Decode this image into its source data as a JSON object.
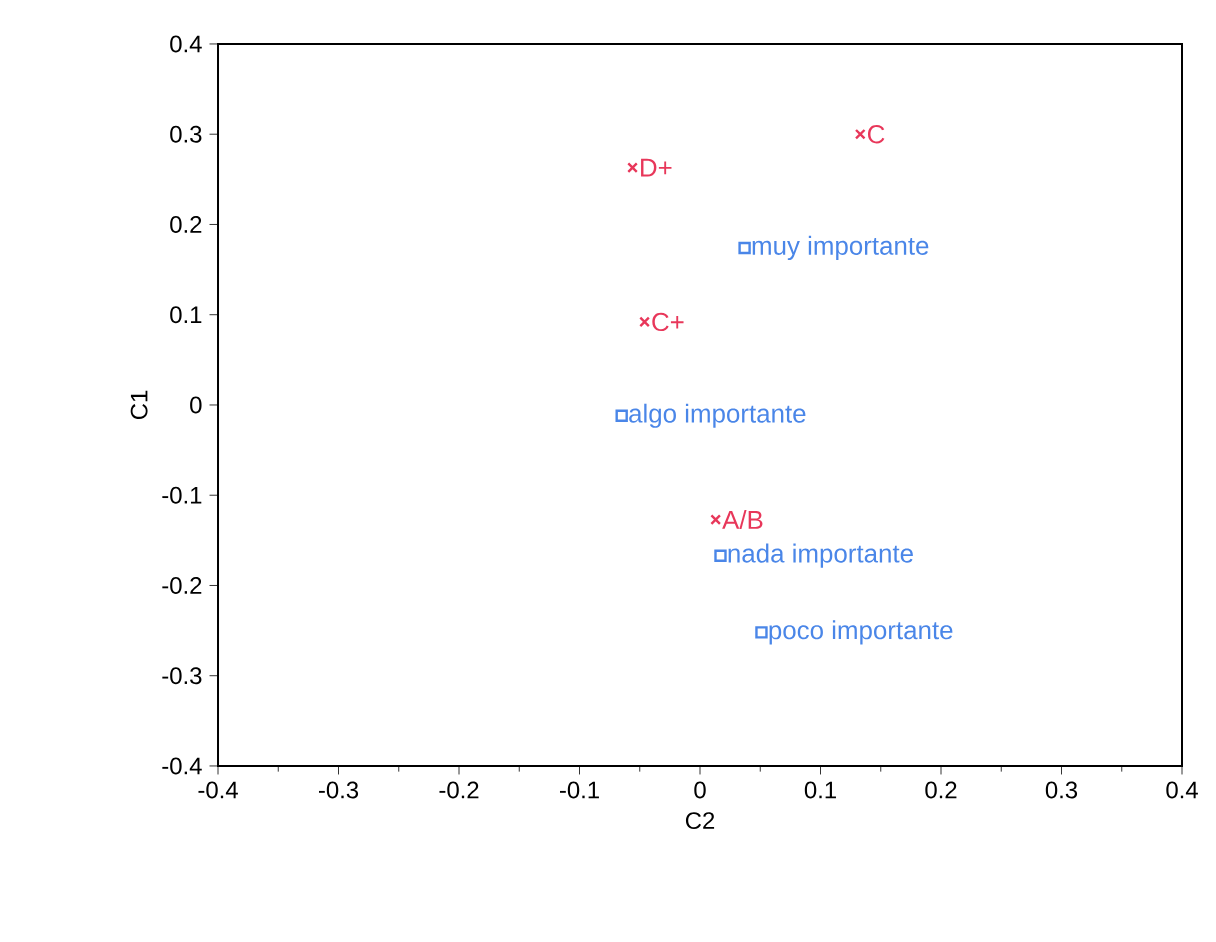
{
  "chart_data": {
    "type": "scatter",
    "xlabel": "C2",
    "ylabel": "C1",
    "xlim": [
      -0.4,
      0.4
    ],
    "ylim": [
      -0.4,
      0.4
    ],
    "xticks": [
      -0.4,
      -0.3,
      -0.2,
      -0.1,
      0,
      0.1,
      0.2,
      0.3,
      0.4
    ],
    "yticks": [
      -0.4,
      -0.3,
      -0.2,
      -0.1,
      0,
      0.1,
      0.2,
      0.3,
      0.4
    ],
    "series": [
      {
        "color": "#e8375a",
        "marker": "cross",
        "x": [
          0.133,
          -0.056,
          -0.046,
          0.013
        ],
        "values": [
          0.3,
          0.263,
          0.092,
          -0.127
        ]
      },
      {
        "color": "#4a86e8",
        "marker": "square",
        "x": [
          0.037,
          -0.065,
          0.017,
          0.051
        ],
        "values": [
          0.174,
          -0.012,
          -0.167,
          -0.252
        ]
      }
    ],
    "annotations": [
      {
        "text": "C",
        "x": 0.133,
        "y": 0.3
      },
      {
        "text": "D+",
        "x": -0.056,
        "y": 0.263
      },
      {
        "text": "C+",
        "x": -0.046,
        "y": 0.092
      },
      {
        "text": "A/B",
        "x": 0.013,
        "y": -0.127
      },
      {
        "text": "muy importante",
        "x": 0.037,
        "y": 0.174
      },
      {
        "text": "algo importante",
        "x": -0.065,
        "y": -0.012
      },
      {
        "text": "nada importante",
        "x": 0.017,
        "y": -0.167
      },
      {
        "text": "poco importante",
        "x": 0.051,
        "y": -0.252
      }
    ]
  }
}
